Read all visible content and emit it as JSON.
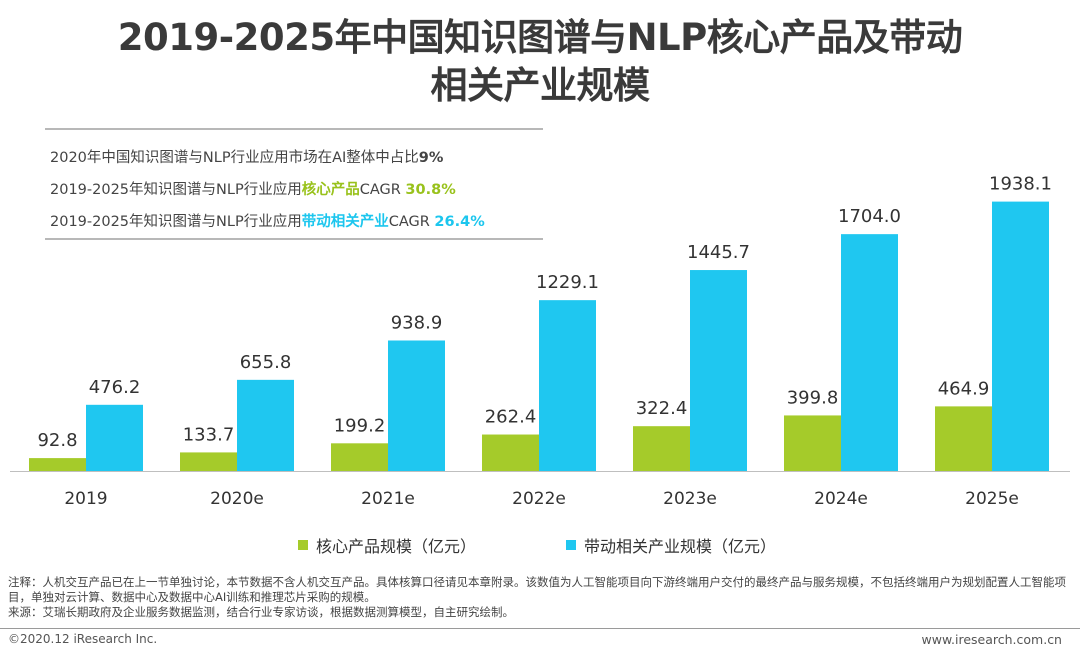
{
  "title": {
    "line1": "2019-2025年中国知识图谱与NLP核心产品及带动",
    "line2": "相关产业规模"
  },
  "info": {
    "line1_prefix": "2020年中国知识图谱与NLP行业应用市场在AI整体中占比",
    "line1_value": "9%",
    "line2_prefix": "2019-2025年知识图谱与NLP行业应用",
    "line2_highlight": "核心产品",
    "line2_suffix": "CAGR ",
    "line2_value": "30.8%",
    "line3_prefix": "2019-2025年知识图谱与NLP行业应用",
    "line3_highlight": "带动相关产业",
    "line3_suffix": "CAGR ",
    "line3_value": "26.4%"
  },
  "chart_data": {
    "type": "bar",
    "categories": [
      "2019",
      "2020e",
      "2021e",
      "2022e",
      "2023e",
      "2024e",
      "2025e"
    ],
    "series": [
      {
        "name": "核心产品规模（亿元）",
        "values": [
          92.8,
          133.7,
          199.2,
          262.4,
          322.4,
          399.8,
          464.9
        ],
        "color": "#a5cb2a"
      },
      {
        "name": "带动相关产业规模（亿元）",
        "values": [
          476.2,
          655.8,
          938.9,
          1229.1,
          1445.7,
          1704.0,
          1938.1
        ],
        "color": "#1fc7f0"
      }
    ],
    "value_labels": [
      [
        "92.8",
        "133.7",
        "199.2",
        "262.4",
        "322.4",
        "399.8",
        "464.9"
      ],
      [
        "476.2",
        "655.8",
        "938.9",
        "1229.1",
        "1445.7",
        "1704.0",
        "1938.1"
      ]
    ],
    "ylim": [
      0,
      2000
    ],
    "grid": false,
    "legend": "bottom",
    "axis_color": "#bfbfbf"
  },
  "notes": {
    "line1": "注释：人机交互产品已在上一节单独讨论，本节数据不含人机交互产品。具体核算口径请见本章附录。该数值为人工智能项目向下游终端用户交付的最终产品与服务规模，不包括终端用户为规划配置人工智能项目，单独对云计算、数据中心及数据中心AI训练和推理芯片采购的规模。",
    "line2": "来源：艾瑞长期政府及企业服务数据监测，结合行业专家访谈，根据数据测算模型，自主研究绘制。"
  },
  "footer": {
    "copyright": "©2020.12 iResearch Inc.",
    "website": "www.iresearch.com.cn"
  }
}
